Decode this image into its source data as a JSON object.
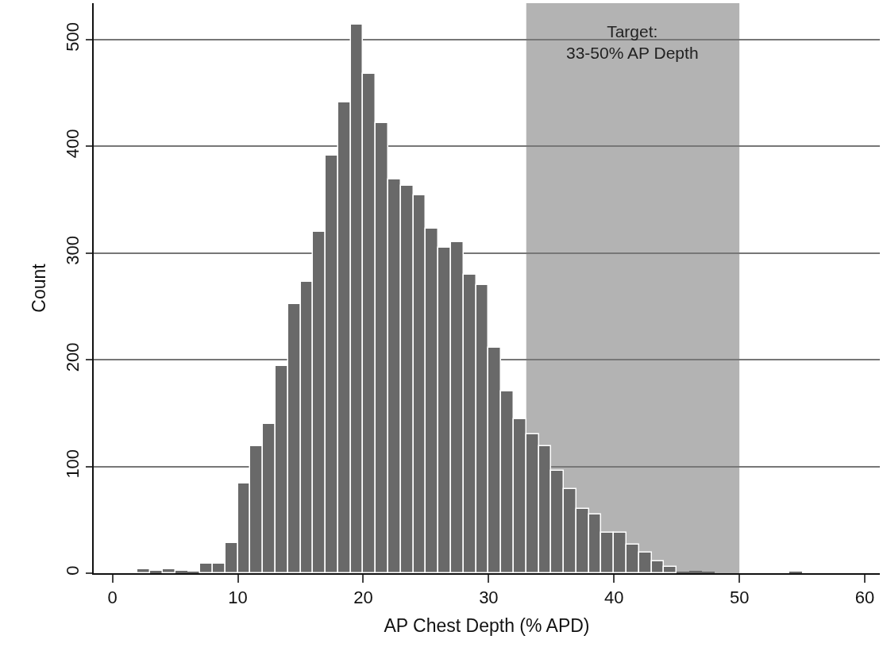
{
  "chart_data": {
    "type": "histogram",
    "xlabel": "AP Chest Depth (% APD)",
    "ylabel": "Count",
    "bins": [
      2,
      3,
      4,
      5,
      6,
      7,
      8,
      9,
      10,
      11,
      12,
      13,
      14,
      15,
      16,
      17,
      18,
      19,
      20,
      21,
      22,
      23,
      24,
      25,
      26,
      27,
      28,
      29,
      30,
      31,
      32,
      33,
      34,
      35,
      36,
      37,
      38,
      39,
      40,
      41,
      42,
      43,
      44,
      45,
      46,
      47,
      48,
      49,
      50,
      51,
      52,
      53,
      54,
      55
    ],
    "values": [
      4,
      2,
      4,
      2,
      1,
      9,
      9,
      28,
      84,
      119,
      140,
      194,
      252,
      273,
      320,
      391,
      441,
      514,
      468,
      422,
      369,
      363,
      354,
      323,
      305,
      310,
      280,
      270,
      211,
      170,
      144,
      130,
      119,
      96,
      79,
      60,
      55,
      38,
      38,
      27,
      19,
      11,
      6,
      1,
      2,
      1,
      0,
      0,
      0,
      0,
      0,
      0,
      1
    ],
    "color": "#696969",
    "xlim": [
      -1.5,
      61.2
    ],
    "ylim": [
      0,
      534
    ],
    "xticks": [
      0,
      10,
      20,
      30,
      40,
      50,
      60
    ],
    "yticks": [
      0,
      100,
      200,
      300,
      400,
      500
    ],
    "grid": "y",
    "bands": [
      {
        "axis": "x",
        "from": 33,
        "to": 50,
        "label": "Target:\n33-50% AP Depth",
        "color": "#b3b3b3"
      }
    ]
  }
}
